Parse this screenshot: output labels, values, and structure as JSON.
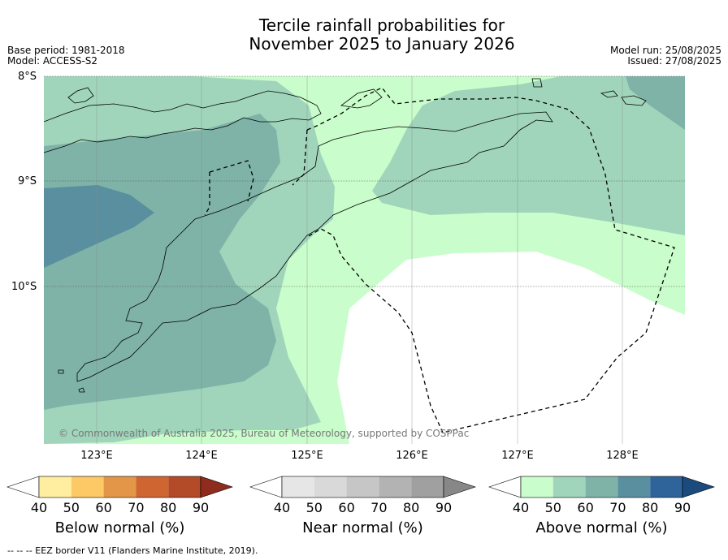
{
  "title_line1": "Tercile rainfall probabilities for",
  "title_line2": "November 2025 to January 2026",
  "meta_left": [
    "Base period: 1981-2018",
    "Model: ACCESS-S2"
  ],
  "meta_right": [
    "Model run: 25/08/2025",
    "Issued: 27/08/2025"
  ],
  "lat_labels": [
    "8°S",
    "9°S",
    "10°S"
  ],
  "lon_labels": [
    "123°E",
    "124°E",
    "125°E",
    "126°E",
    "127°E",
    "128°E"
  ],
  "credit": "© Commonwealth of Australia 2025, Bureau of Meteorology, supported by COSPPac",
  "colorbars": [
    {
      "label": "Below normal (%)",
      "ticks": [
        "40",
        "50",
        "60",
        "70",
        "80",
        "90"
      ],
      "colors": [
        "#ffffff",
        "#ffeea0",
        "#fdc967",
        "#e39648",
        "#cf6531",
        "#b34a28",
        "#8e2d1e"
      ]
    },
    {
      "label": "Near normal (%)",
      "ticks": [
        "40",
        "50",
        "60",
        "70",
        "80",
        "90"
      ],
      "colors": [
        "#ffffff",
        "#e6e6e6",
        "#d9d9d9",
        "#c6c6c6",
        "#b3b3b3",
        "#a0a0a0",
        "#878787"
      ]
    },
    {
      "label": "Above normal (%)",
      "ticks": [
        "40",
        "50",
        "60",
        "70",
        "80",
        "90"
      ],
      "colors": [
        "#ffffff",
        "#c9fdcb",
        "#a0d5bb",
        "#7fb3a7",
        "#5a8fa0",
        "#2e6499",
        "#1b4a7d"
      ]
    }
  ],
  "footer": "--  --  -- EEZ border V11 (Flanders Marine Institute, 2019)."
}
